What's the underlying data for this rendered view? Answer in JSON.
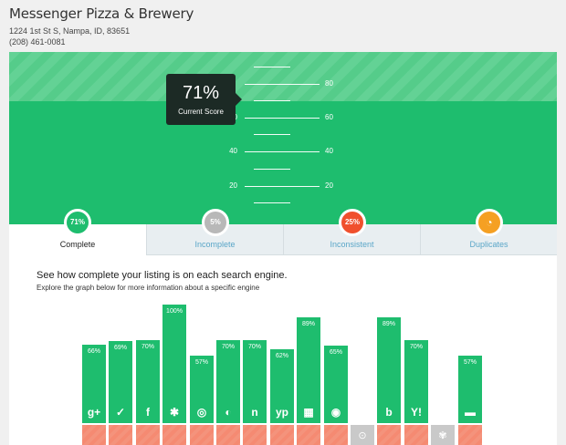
{
  "business": {
    "name": "Messenger Pizza & Brewery",
    "address": "1224 1st St S, Nampa, ID, 83651",
    "phone": "(208) 461-0081"
  },
  "gauge": {
    "ticks": [
      "80",
      "60",
      "40",
      "20"
    ],
    "score": "71%",
    "score_label": "Current Score"
  },
  "tabs": [
    {
      "label": "Complete",
      "value": "71%",
      "color": "#1ebd6e",
      "active": true
    },
    {
      "label": "Incomplete",
      "value": "5%",
      "color": "#b8b8b8",
      "active": false
    },
    {
      "label": "Inconsistent",
      "value": "25%",
      "color": "#f0502d",
      "active": false
    },
    {
      "label": "Duplicates",
      "value": "",
      "color": "#f5a023",
      "active": false
    }
  ],
  "panel": {
    "title": "See how complete your listing is on each search engine.",
    "subtitle": "Explore the graph below for more information about a specific engine"
  },
  "chart_data": {
    "type": "bar",
    "categories": [
      "google-plus",
      "foursquare",
      "facebook",
      "yelp",
      "tripadvisor",
      "citysearch",
      "neustar",
      "yellowpages",
      "factual",
      "yahoo-local",
      "superpages",
      "bing",
      "yahoo",
      "yext",
      "mapquest"
    ],
    "values": [
      66,
      69,
      70,
      100,
      57,
      70,
      70,
      62,
      89,
      65,
      null,
      89,
      70,
      null,
      57
    ],
    "labels": [
      "66%",
      "69%",
      "70%",
      "100%",
      "57%",
      "70%",
      "70%",
      "62%",
      "89%",
      "65%",
      "",
      "89%",
      "70%",
      "",
      "57%"
    ],
    "icons": [
      "g+",
      "✓",
      "f",
      "✱",
      "◎",
      "◐",
      "n",
      "yp",
      "▦",
      "◉",
      "⊙",
      "b",
      "Y!",
      "✾",
      "▬"
    ],
    "colors": {
      "complete": "#1ebd6e",
      "inconsistent": "#f4937c",
      "missing": "#c9c9c9"
    }
  }
}
